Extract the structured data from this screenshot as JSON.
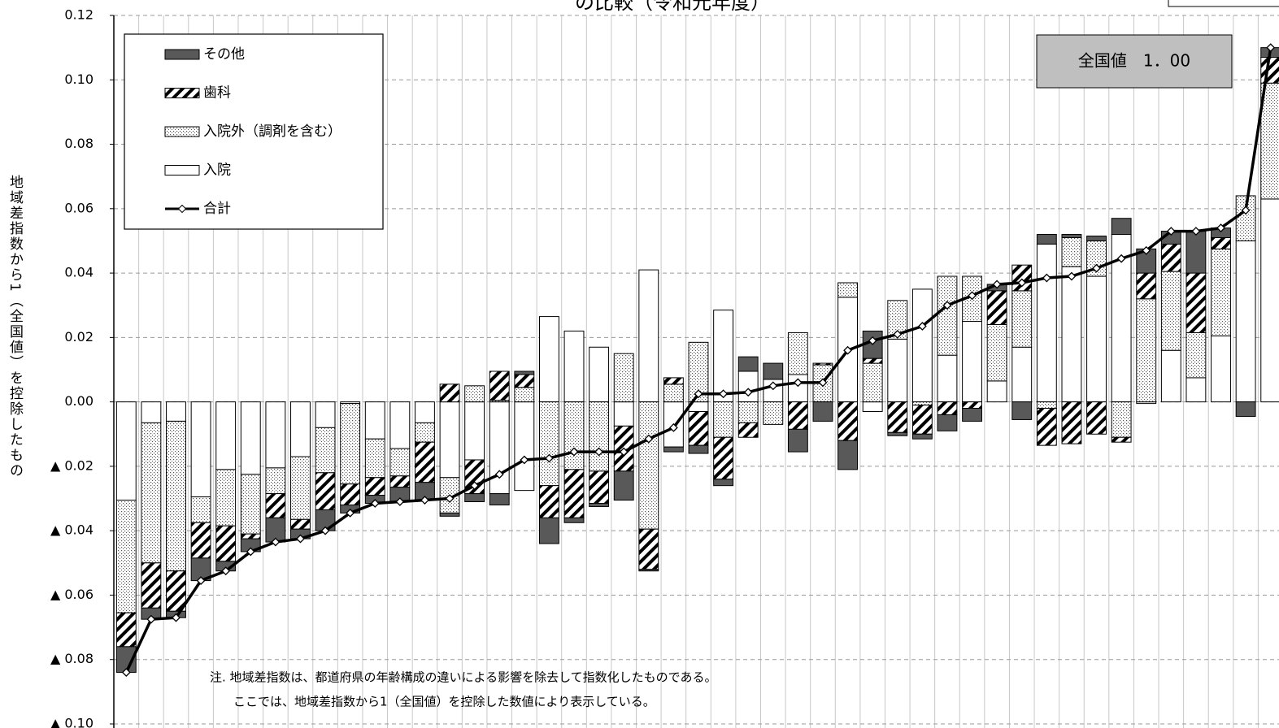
{
  "chart_data": {
    "type": "bar",
    "title": "の比較（令和元年度）",
    "y_label": "地域差指数から1（全国値）を控除したもの",
    "annotation": "全国値　1．00",
    "notes": [
      "注. 地域差指数は、都道府県の年齢構成の違いによる影響を除去して指数化したものである。",
      "ここでは、地域差指数から1（全国値）を控除した数値により表示している。"
    ],
    "stacked": true,
    "legend": "upper left",
    "grid": true,
    "ylim": [
      -0.1,
      0.12
    ],
    "yticks": [
      0.12,
      {
        "value": 0.1,
        "label": "0.10"
      },
      0.08,
      0.06,
      0.04,
      0.02,
      {
        "value": 0,
        "label": "0.00"
      },
      {
        "value": -0.02,
        "label": "▲ 0.02"
      },
      {
        "value": -0.04,
        "label": "▲ 0.04"
      },
      {
        "value": -0.06,
        "label": "▲ 0.06"
      },
      {
        "value": -0.08,
        "label": "▲ 0.08"
      },
      {
        "value": -0.1,
        "label": "▲ 0.10"
      }
    ],
    "categories": [
      null,
      null,
      null,
      null,
      null,
      null,
      null,
      null,
      null,
      null,
      null,
      null,
      null,
      null,
      null,
      null,
      null,
      null,
      null,
      null,
      null,
      null,
      null,
      null,
      null,
      null,
      null,
      null,
      null,
      null,
      null,
      null,
      null,
      null,
      null,
      null,
      null,
      null,
      null,
      null,
      null,
      null,
      null,
      null,
      null,
      null,
      null
    ],
    "series": [
      {
        "name": "その他",
        "type": "bar",
        "pattern": "solid",
        "color": "#595959",
        "values": [
          -0.008,
          -0.0035,
          -0.002,
          -0.007,
          -0.003,
          -0.004,
          -0.0075,
          -0.003,
          -0.0065,
          -0.0025,
          -0.0025,
          -0.0045,
          -0.0055,
          -0.001,
          -0.0025,
          -0.0035,
          0.001,
          -0.008,
          -0.0015,
          -0.001,
          -0.009,
          -0.0005,
          -0.0015,
          -0.0025,
          -0.002,
          0.0045,
          0.005,
          -0.007,
          -0.006,
          -0.009,
          0.0085,
          -0.001,
          -0.0015,
          -0.005,
          -0.004,
          0.002,
          -0.0055,
          0.003,
          0.001,
          0.0015,
          0.005,
          0.0075,
          0.004,
          0.013,
          0.003,
          -0.0045,
          0.003
        ]
      },
      {
        "name": "歯科",
        "type": "bar",
        "pattern": "hatch",
        "color": "#000000",
        "values": [
          -0.0105,
          -0.014,
          -0.0125,
          -0.011,
          -0.011,
          -0.0015,
          -0.0075,
          -0.003,
          -0.0115,
          -0.0065,
          -0.0055,
          -0.0035,
          -0.0125,
          0.0055,
          -0.0105,
          0.009,
          0.004,
          -0.01,
          -0.015,
          -0.01,
          -0.014,
          -0.0125,
          0.002,
          -0.0105,
          -0.013,
          -0.0045,
          0,
          -0.0085,
          0.0005,
          -0.012,
          0.0015,
          -0.0095,
          -0.009,
          -0.004,
          -0.002,
          0.0105,
          0.008,
          -0.0115,
          -0.013,
          -0.01,
          -0.0015,
          0.008,
          0.0085,
          0.0185,
          0.0035,
          0,
          0.008
        ]
      },
      {
        "name": "入院外（調剤を含む）",
        "type": "bar",
        "pattern": "dots",
        "color": "#808080",
        "values": [
          -0.035,
          -0.0435,
          -0.0465,
          -0.008,
          -0.0175,
          -0.0185,
          -0.008,
          -0.0195,
          -0.014,
          -0.025,
          -0.012,
          -0.0085,
          -0.006,
          -0.011,
          0.005,
          0.0005,
          0.0045,
          -0.026,
          -0.021,
          -0.0215,
          0.015,
          -0.0395,
          0.0055,
          0.0185,
          -0.011,
          -0.0065,
          -0.007,
          0.013,
          0.0115,
          0.0045,
          0.012,
          0.012,
          -0.001,
          0.0245,
          0.014,
          0.0175,
          0.0175,
          -0.002,
          0.009,
          0.011,
          -0.011,
          0.032,
          0.0245,
          0.014,
          0.027,
          0.014,
          0.036
        ]
      },
      {
        "name": "入院",
        "type": "bar",
        "pattern": "none",
        "color": "#ffffff",
        "values": [
          -0.0305,
          -0.0065,
          -0.006,
          -0.0295,
          -0.021,
          -0.0225,
          -0.0205,
          -0.017,
          -0.008,
          -0.0005,
          -0.0115,
          -0.0145,
          -0.0065,
          -0.0235,
          -0.018,
          -0.0285,
          -0.0275,
          0.0265,
          0.022,
          0.017,
          -0.0075,
          0.041,
          -0.014,
          -0.003,
          0.0285,
          0.0095,
          0.007,
          0.0085,
          0,
          0.0325,
          -0.003,
          0.0195,
          0.035,
          0.0145,
          0.025,
          0.0065,
          0.017,
          0.049,
          0.042,
          0.039,
          0.052,
          -0.0005,
          0.016,
          0.0075,
          0.0205,
          0.05,
          0.063
        ]
      },
      {
        "name": "合計",
        "type": "line",
        "color": "#000000",
        "marker": "diamond",
        "values": [
          -0.084,
          -0.0675,
          -0.067,
          -0.0555,
          -0.0525,
          -0.0465,
          -0.0435,
          -0.0425,
          -0.04,
          -0.0345,
          -0.0315,
          -0.031,
          -0.0305,
          -0.03,
          -0.026,
          -0.0225,
          -0.018,
          -0.0175,
          -0.0155,
          -0.0155,
          -0.0155,
          -0.0115,
          -0.008,
          0.0025,
          0.0025,
          0.003,
          0.005,
          0.006,
          0.006,
          0.016,
          0.019,
          0.021,
          0.0235,
          0.03,
          0.033,
          0.0365,
          0.037,
          0.0385,
          0.039,
          0.0415,
          0.0445,
          0.047,
          0.053,
          0.053,
          0.054,
          0.0595,
          0.11
        ]
      }
    ]
  }
}
